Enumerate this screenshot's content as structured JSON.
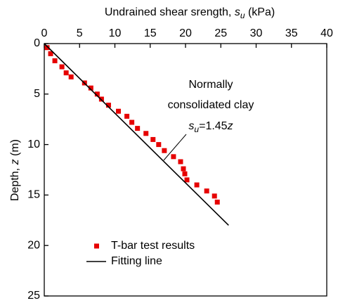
{
  "chart_data": {
    "type": "scatter",
    "xlabel": {
      "text": "Undrained shear srength, ",
      "var": "s",
      "sub": "u",
      "unit": " (kPa)"
    },
    "ylabel": {
      "text": "Depth, ",
      "var": "z",
      "unit": " (m)"
    },
    "xlim": [
      0,
      40
    ],
    "xticks": [
      0,
      5,
      10,
      15,
      20,
      25,
      30,
      35,
      40
    ],
    "ylim": [
      0,
      25
    ],
    "yticks": [
      0,
      5,
      10,
      15,
      20,
      25
    ],
    "y_inverted": true,
    "x_axis_position": "top",
    "legend": "bottom-left",
    "series": [
      {
        "name": "T-bar test results",
        "color": "#e60000",
        "marker": "square",
        "x": [
          0.4,
          0.9,
          1.5,
          2.5,
          3.1,
          3.8,
          5.7,
          6.6,
          7.5,
          8.1,
          9.1,
          10.5,
          11.7,
          12.4,
          13.2,
          14.4,
          15.4,
          16.2,
          17.0,
          18.3,
          19.3,
          19.7,
          19.9,
          20.2,
          21.6,
          23.0,
          24.1,
          24.5
        ],
        "y": [
          0.4,
          1.0,
          1.7,
          2.3,
          2.9,
          3.3,
          3.9,
          4.4,
          5.0,
          5.5,
          6.1,
          6.7,
          7.2,
          7.8,
          8.4,
          8.9,
          9.5,
          10.0,
          10.6,
          11.2,
          11.7,
          12.4,
          12.9,
          13.5,
          14.0,
          14.6,
          15.1,
          15.7
        ]
      },
      {
        "name": "Fitting line",
        "color": "#000000",
        "marker": "line",
        "x": [
          0,
          26.1
        ],
        "y": [
          0,
          18
        ]
      }
    ],
    "annotation": {
      "lines": [
        "Normally",
        "consolidated clay"
      ],
      "equation": {
        "var": "s",
        "sub": "u",
        "rest": "=1.45",
        "var2": "z"
      }
    }
  }
}
